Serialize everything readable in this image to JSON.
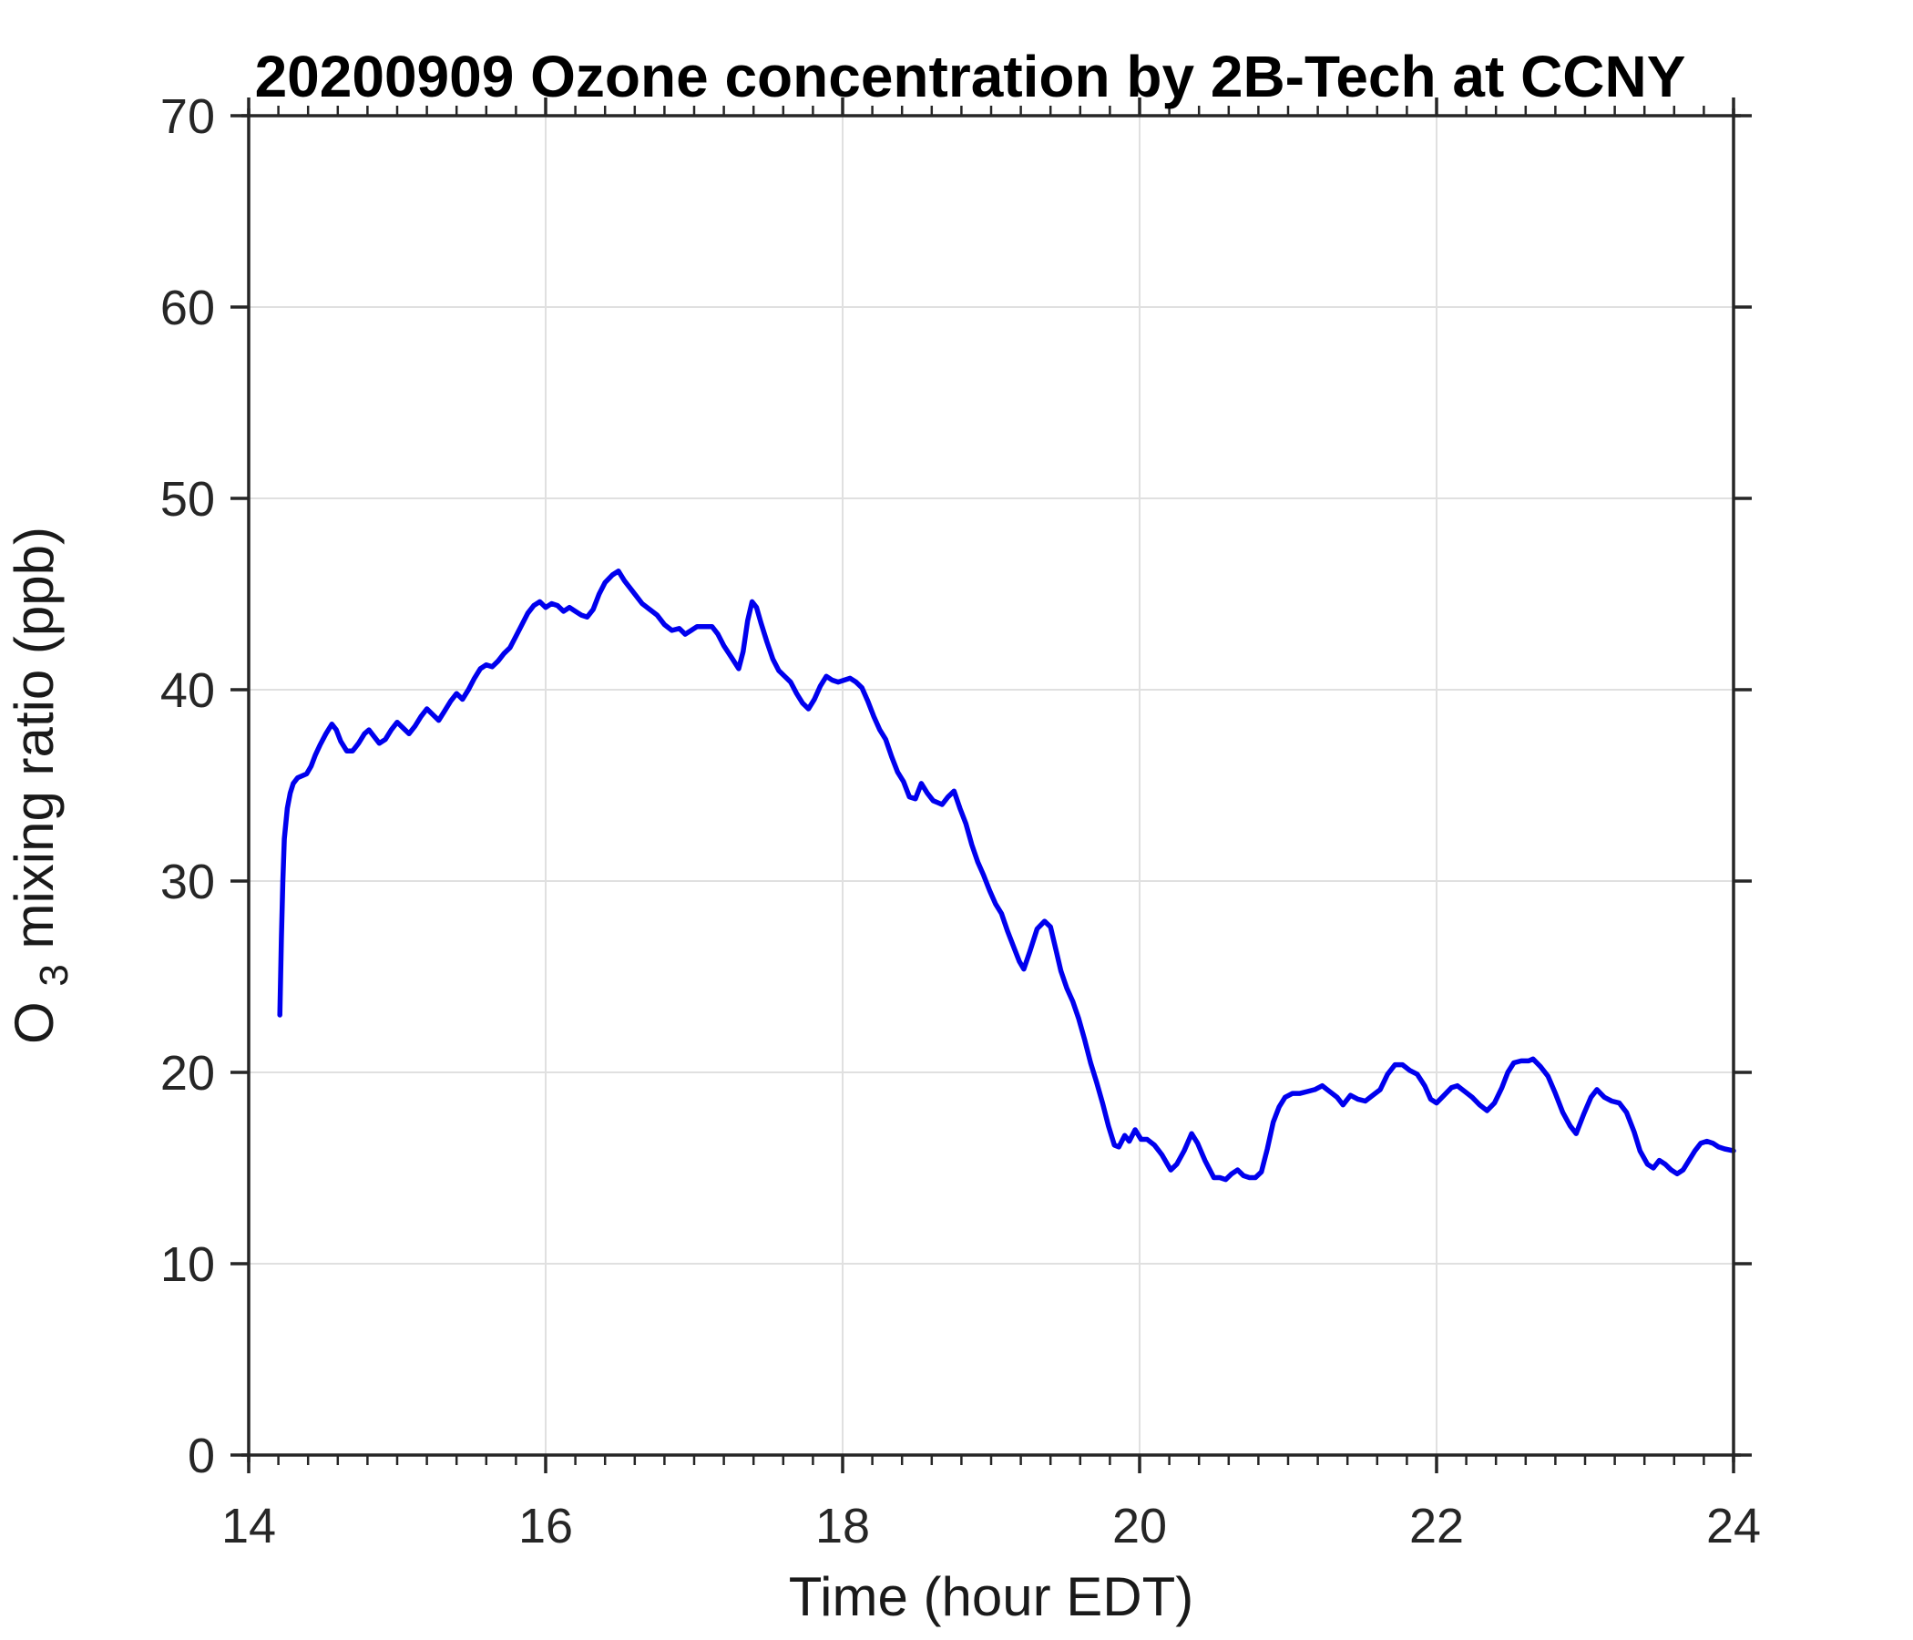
{
  "title": "20200909 Ozone concentration by 2B-Tech at CCNY",
  "chart_data": {
    "type": "line",
    "title": "20200909 Ozone concentration by 2B-Tech at CCNY",
    "xlabel": "Time (hour EDT)",
    "ylabel": "O3 mixing ratio (ppb)",
    "ylabel_main": "O",
    "ylabel_sub": "3",
    "ylabel_rest": " mixing ratio (ppb)",
    "xlim": [
      14,
      24
    ],
    "ylim": [
      0,
      70
    ],
    "xticks": [
      14,
      16,
      18,
      20,
      22,
      24
    ],
    "xticklabels": [
      "14",
      "16",
      "18",
      "20",
      "22",
      "24"
    ],
    "yticks": [
      0,
      10,
      20,
      30,
      40,
      50,
      60,
      70
    ],
    "yticklabels": [
      "0",
      "10",
      "20",
      "30",
      "40",
      "50",
      "60",
      "70"
    ],
    "x_minor_tick_step": 0.2,
    "grid": true,
    "legend": false,
    "colors": {
      "line": "#0000EE",
      "grid": "#E0E0E0",
      "axis": "#262626",
      "background": "#FFFFFF"
    },
    "series": [
      {
        "name": "O3 mixing ratio",
        "x": [
          14.21,
          14.22,
          14.23,
          14.24,
          14.26,
          14.28,
          14.3,
          14.33,
          14.36,
          14.39,
          14.42,
          14.45,
          14.48,
          14.52,
          14.56,
          14.59,
          14.62,
          14.66,
          14.7,
          14.74,
          14.78,
          14.81,
          14.84,
          14.88,
          14.92,
          14.96,
          15.0,
          15.04,
          15.08,
          15.12,
          15.16,
          15.2,
          15.24,
          15.28,
          15.32,
          15.36,
          15.4,
          15.44,
          15.48,
          15.52,
          15.56,
          15.6,
          15.64,
          15.68,
          15.72,
          15.76,
          15.8,
          15.84,
          15.88,
          15.92,
          15.96,
          16.0,
          16.04,
          16.08,
          16.12,
          16.16,
          16.2,
          16.24,
          16.28,
          16.32,
          16.36,
          16.4,
          16.45,
          16.49,
          16.53,
          16.57,
          16.61,
          16.65,
          16.7,
          16.75,
          16.8,
          16.85,
          16.9,
          16.94,
          16.98,
          17.02,
          17.07,
          17.12,
          17.16,
          17.2,
          17.25,
          17.3,
          17.33,
          17.36,
          17.39,
          17.42,
          17.45,
          17.49,
          17.53,
          17.57,
          17.61,
          17.65,
          17.69,
          17.73,
          17.77,
          17.81,
          17.85,
          17.89,
          17.93,
          17.97,
          18.01,
          18.05,
          18.09,
          18.13,
          18.17,
          18.21,
          18.25,
          18.29,
          18.33,
          18.37,
          18.41,
          18.45,
          18.49,
          18.53,
          18.57,
          18.61,
          18.64,
          18.67,
          18.71,
          18.75,
          18.79,
          18.83,
          18.87,
          18.91,
          18.95,
          18.99,
          19.03,
          19.07,
          19.11,
          19.15,
          19.19,
          19.22,
          19.26,
          19.31,
          19.36,
          19.4,
          19.44,
          19.47,
          19.51,
          19.55,
          19.59,
          19.63,
          19.67,
          19.71,
          19.75,
          19.79,
          19.83,
          19.86,
          19.9,
          19.93,
          19.97,
          20.01,
          20.05,
          20.1,
          20.15,
          20.21,
          20.25,
          20.3,
          20.35,
          20.39,
          20.44,
          20.5,
          20.54,
          20.58,
          20.62,
          20.66,
          20.7,
          20.74,
          20.78,
          20.82,
          20.86,
          20.9,
          20.94,
          20.98,
          21.03,
          21.08,
          21.13,
          21.18,
          21.23,
          21.28,
          21.33,
          21.37,
          21.42,
          21.47,
          21.52,
          21.57,
          21.62,
          21.67,
          21.72,
          21.77,
          21.82,
          21.87,
          21.92,
          21.96,
          22.0,
          22.05,
          22.1,
          22.14,
          22.19,
          22.24,
          22.29,
          22.34,
          22.39,
          22.44,
          22.48,
          22.52,
          22.57,
          22.62,
          22.65,
          22.7,
          22.75,
          22.8,
          22.85,
          22.9,
          22.94,
          22.99,
          23.04,
          23.08,
          23.13,
          23.18,
          23.23,
          23.28,
          23.33,
          23.37,
          23.42,
          23.46,
          23.5,
          23.54,
          23.58,
          23.62,
          23.66,
          23.7,
          23.74,
          23.78,
          23.82,
          23.86,
          23.9,
          23.94,
          24.0
        ],
        "y": [
          23.0,
          27.0,
          30.0,
          32.2,
          33.8,
          34.6,
          35.1,
          35.4,
          35.5,
          35.6,
          36.0,
          36.6,
          37.1,
          37.7,
          38.2,
          37.9,
          37.3,
          36.8,
          36.8,
          37.2,
          37.7,
          37.9,
          37.6,
          37.2,
          37.4,
          37.9,
          38.3,
          38.0,
          37.7,
          38.1,
          38.6,
          39.0,
          38.7,
          38.4,
          38.9,
          39.4,
          39.8,
          39.5,
          40.0,
          40.6,
          41.1,
          41.3,
          41.2,
          41.5,
          41.9,
          42.2,
          42.8,
          43.4,
          44.0,
          44.4,
          44.6,
          44.3,
          44.5,
          44.4,
          44.1,
          44.3,
          44.1,
          43.9,
          43.8,
          44.2,
          45.0,
          45.6,
          46.0,
          46.2,
          45.7,
          45.3,
          44.9,
          44.5,
          44.2,
          43.9,
          43.4,
          43.1,
          43.2,
          42.9,
          43.1,
          43.3,
          43.3,
          43.3,
          42.9,
          42.3,
          41.7,
          41.1,
          42.0,
          43.6,
          44.6,
          44.3,
          43.5,
          42.5,
          41.6,
          41.0,
          40.7,
          40.4,
          39.8,
          39.3,
          39.0,
          39.5,
          40.2,
          40.7,
          40.5,
          40.4,
          40.5,
          40.6,
          40.4,
          40.1,
          39.4,
          38.6,
          37.9,
          37.4,
          36.5,
          35.7,
          35.2,
          34.4,
          34.3,
          35.1,
          34.6,
          34.2,
          34.1,
          34.0,
          34.4,
          34.7,
          33.8,
          33.0,
          31.9,
          31.0,
          30.3,
          29.5,
          28.8,
          28.3,
          27.4,
          26.6,
          25.8,
          25.4,
          26.3,
          27.5,
          27.9,
          27.6,
          26.3,
          25.3,
          24.4,
          23.7,
          22.8,
          21.7,
          20.5,
          19.5,
          18.4,
          17.2,
          16.2,
          16.1,
          16.7,
          16.4,
          17.0,
          16.5,
          16.5,
          16.2,
          15.7,
          14.9,
          15.2,
          15.9,
          16.8,
          16.3,
          15.4,
          14.5,
          14.5,
          14.4,
          14.7,
          14.9,
          14.6,
          14.5,
          14.5,
          14.8,
          16.0,
          17.4,
          18.2,
          18.7,
          18.9,
          18.9,
          19.0,
          19.1,
          19.3,
          19.0,
          18.7,
          18.3,
          18.8,
          18.6,
          18.5,
          18.8,
          19.1,
          19.9,
          20.4,
          20.4,
          20.1,
          19.9,
          19.3,
          18.6,
          18.4,
          18.8,
          19.2,
          19.3,
          19.0,
          18.7,
          18.3,
          18.0,
          18.4,
          19.2,
          20.0,
          20.5,
          20.6,
          20.6,
          20.7,
          20.3,
          19.8,
          18.9,
          17.9,
          17.2,
          16.8,
          17.8,
          18.7,
          19.1,
          18.7,
          18.5,
          18.4,
          17.9,
          16.9,
          15.9,
          15.2,
          15.0,
          15.4,
          15.2,
          14.9,
          14.7,
          14.9,
          15.4,
          15.9,
          16.3,
          16.4,
          16.3,
          16.1,
          16.0,
          15.9
        ]
      }
    ]
  }
}
